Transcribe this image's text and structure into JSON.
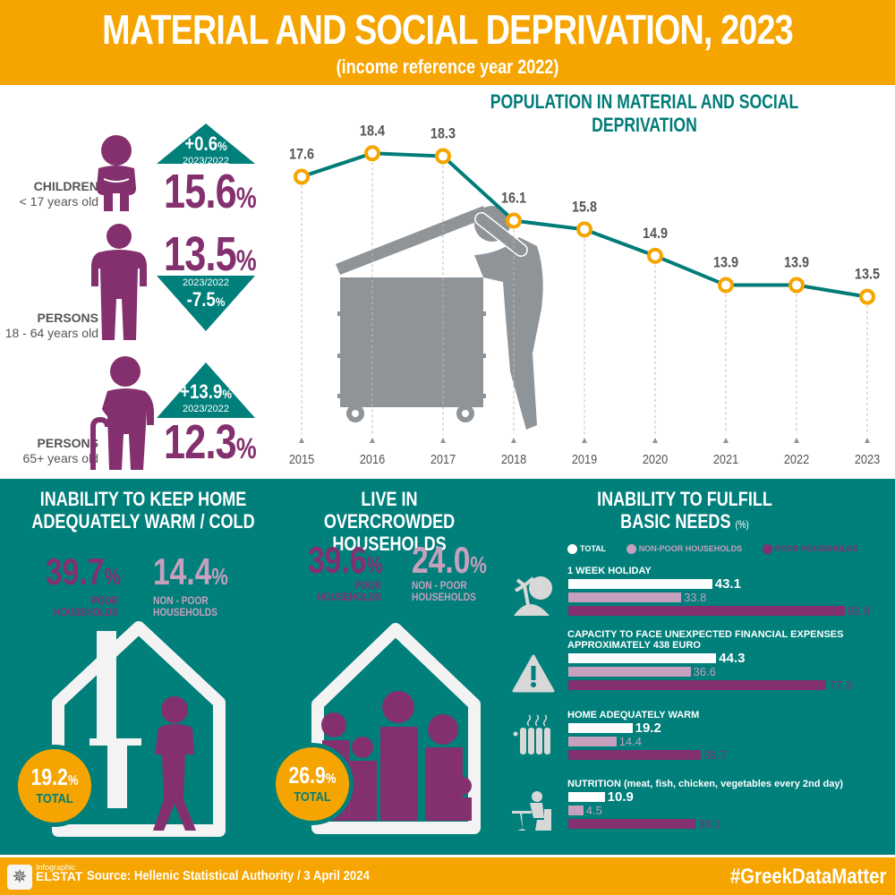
{
  "header": {
    "title": "MATERIAL AND SOCIAL DEPRIVATION, 2023",
    "subtitle": "(income reference year 2022)"
  },
  "groups": [
    {
      "label_bold": "CHILDREN",
      "label": "< 17 years old",
      "value": "15.6",
      "change": "+0.6",
      "change_period": "2023/2022",
      "direction": "up",
      "icon": "child-sitting-icon"
    },
    {
      "label_bold": "PERSONS",
      "label": "18 - 64 years old",
      "value": "13.5",
      "change": "-7.5",
      "change_period": "2023/2022",
      "direction": "down",
      "icon": "adult-empty-pockets-icon"
    },
    {
      "label_bold": "PERSONS",
      "label": "65+ years old",
      "value": "12.3",
      "change": "+13.9",
      "change_period": "2023/2022",
      "direction": "up",
      "icon": "elderly-cane-icon"
    }
  ],
  "pct_sign": "%",
  "chart_data": [
    {
      "type": "line",
      "title": "POPULATION IN MATERIAL AND SOCIAL DEPRIVATION",
      "x": [
        "2015",
        "2016",
        "2017",
        "2018",
        "2019",
        "2020",
        "2021",
        "2022",
        "2023"
      ],
      "series": [
        {
          "name": "Population in material and social deprivation (%)",
          "values": [
            17.6,
            18.4,
            18.3,
            16.1,
            15.8,
            14.9,
            13.9,
            13.9,
            13.5
          ]
        }
      ],
      "xlabel": "",
      "ylabel": "",
      "grid": false,
      "colors": {
        "line": "#007c78",
        "marker": "#f6a500",
        "labels": "#555555"
      }
    },
    {
      "type": "bar",
      "title": "INABILITY TO FULFILL BASIC NEEDS",
      "unit": "(%)",
      "categories": [
        "1 WEEK HOLIDAY",
        "CAPACITY TO FACE UNEXPECTED FINANCIAL EXPENSES APPROXIMATELY 438 EURO",
        "HOME ADEQUATELY WARM",
        "NUTRITION (meat, fish, chicken, vegetables every 2nd day)"
      ],
      "series": [
        {
          "name": "TOTAL",
          "values": [
            43.1,
            44.3,
            19.2,
            10.9
          ],
          "color": "#ffffff"
        },
        {
          "name": "NON-POOR HOUSEHOLDS",
          "values": [
            33.8,
            36.6,
            14.4,
            4.5
          ],
          "color": "#c7a0be"
        },
        {
          "name": "POOR HOUSEHOLDS",
          "values": [
            82.8,
            77.3,
            39.7,
            38.1
          ],
          "color": "#84306f"
        }
      ],
      "orientation": "horizontal",
      "legend": "top"
    }
  ],
  "warm": {
    "title_line1": "INABILITY TO KEEP HOME",
    "title_line2": "ADEQUATELY WARM / COLD",
    "poor_value": "39.7",
    "poor_label_1": "POOR",
    "poor_label_2": "HOUSEHOLDS",
    "nonpoor_value": "14.4",
    "nonpoor_label_1": "NON - POOR",
    "nonpoor_label_2": "HOUSEHOLDS",
    "total_value": "19.2",
    "total_label": "TOTAL"
  },
  "crowded": {
    "title_line1": "LIVE IN OVERCROWDED",
    "title_line2": "HOUSEHOLDS",
    "poor_value": "39.6",
    "poor_label_1": "POOR",
    "poor_label_2": "HOUSEHOLDS",
    "nonpoor_value": "24.0",
    "nonpoor_label_1": "NON - POOR",
    "nonpoor_label_2": "HOUSEHOLDS",
    "total_value": "26.9",
    "total_label": "TOTAL"
  },
  "needs": {
    "title_line1": "INABILITY TO FULFILL",
    "title_line2": "BASIC NEEDS",
    "unit": "(%)",
    "legend": [
      "TOTAL",
      "NON-POOR HOUSEHOLDS",
      "POOR HOUSEHOLDS"
    ],
    "icons": [
      "holiday-island-icon",
      "warning-icon",
      "radiator-icon",
      "dining-icon"
    ]
  },
  "footer": {
    "logo_small": "Infographic",
    "logo_big": "ELSTAT",
    "source": "Source: Hellenic Statistical Authority / 3 April 2024",
    "hashtag": "#GreekDataMatter"
  },
  "colors": {
    "orange": "#f6a500",
    "teal": "#007f7b",
    "purple": "#84306f",
    "lilac": "#c7a0be",
    "grey": "#8f9499"
  }
}
